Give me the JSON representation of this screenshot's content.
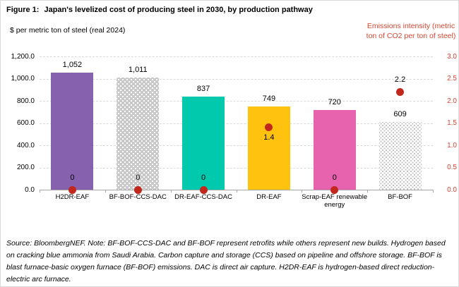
{
  "header": {
    "figure_label": "Figure 1:",
    "title": "Japan's levelized cost of producing steel in 2030, by production pathway"
  },
  "axis_titles": {
    "left": "$ per metric ton of steel (real 2024)",
    "right": "Emissions intensity (metric ton of CO2 per ton of steel)"
  },
  "footer": {
    "source_note": "Source: BloombergNEF. Note: BF-BOF-CCS-DAC and BF-BOF represent retrofits while others represent new builds. Hydrogen based on cracking blue ammonia from Saudi Arabia. Carbon capture and storage (CCS) based on pipeline and offshore storage. BF-BOF is blast furnace-basic oxygen furnace (BF-BOF) emissions. DAC is direct air capture. H2DR-EAF is hydrogen-based direct reduction-electric arc furnace."
  },
  "chart_data": {
    "type": "bar",
    "title": "Japan's levelized cost of producing steel in 2030, by production pathway",
    "categories": [
      "H2DR-EAF",
      "BF-BOF-CCS-DAC",
      "DR-EAF-CCS-DAC",
      "DR-EAF",
      "Scrap-EAF renewable energy",
      "BF-BOF"
    ],
    "series": [
      {
        "name": "Levelized cost of steel",
        "type": "bar",
        "axis": "left",
        "unit": "$ per metric ton of steel (real 2024)",
        "values": [
          1052,
          1011,
          837,
          749,
          720,
          609
        ],
        "value_labels": [
          "1,052",
          "1,011",
          "837",
          "749",
          "720",
          "609"
        ]
      },
      {
        "name": "Emissions intensity",
        "type": "scatter",
        "axis": "right",
        "unit": "metric ton of CO2 per ton of steel",
        "values": [
          0,
          0,
          0,
          1.4,
          0,
          2.2
        ],
        "value_labels": [
          "0",
          "0",
          "0",
          "1.4",
          "0",
          "2.2"
        ],
        "label_positions": [
          "above",
          "above",
          "above",
          "below",
          "above",
          "above"
        ]
      }
    ],
    "left_axis": {
      "min": 0,
      "max": 1200,
      "step": 200,
      "tick_labels": [
        "0.0",
        "200.0",
        "400.0",
        "600.0",
        "800.0",
        "1,000.0",
        "1,200.0"
      ]
    },
    "right_axis": {
      "min": 0,
      "max": 3,
      "step": 0.5,
      "tick_labels": [
        "0.0",
        "0.5",
        "1.0",
        "1.5",
        "2.0",
        "2.5",
        "3.0"
      ]
    },
    "grid": "horizontal dashed",
    "legend": "none",
    "bar_styles": [
      {
        "fill": "#8561AE",
        "pattern": "none"
      },
      {
        "fill": "#C9C9C9",
        "pattern": "white-dots-on-gray"
      },
      {
        "fill": "#00C9AE",
        "pattern": "none"
      },
      {
        "fill": "#FFC20E",
        "pattern": "none"
      },
      {
        "fill": "#E763AE",
        "pattern": "none"
      },
      {
        "fill": "#FFFFFF",
        "pattern": "gray-dots-on-white"
      }
    ],
    "colors": {
      "emissions_dot": "#C2271E",
      "right_axis_text": "#DA4532",
      "gridline": "#D9D9D9",
      "axis_line": "#A6A6A6"
    }
  }
}
